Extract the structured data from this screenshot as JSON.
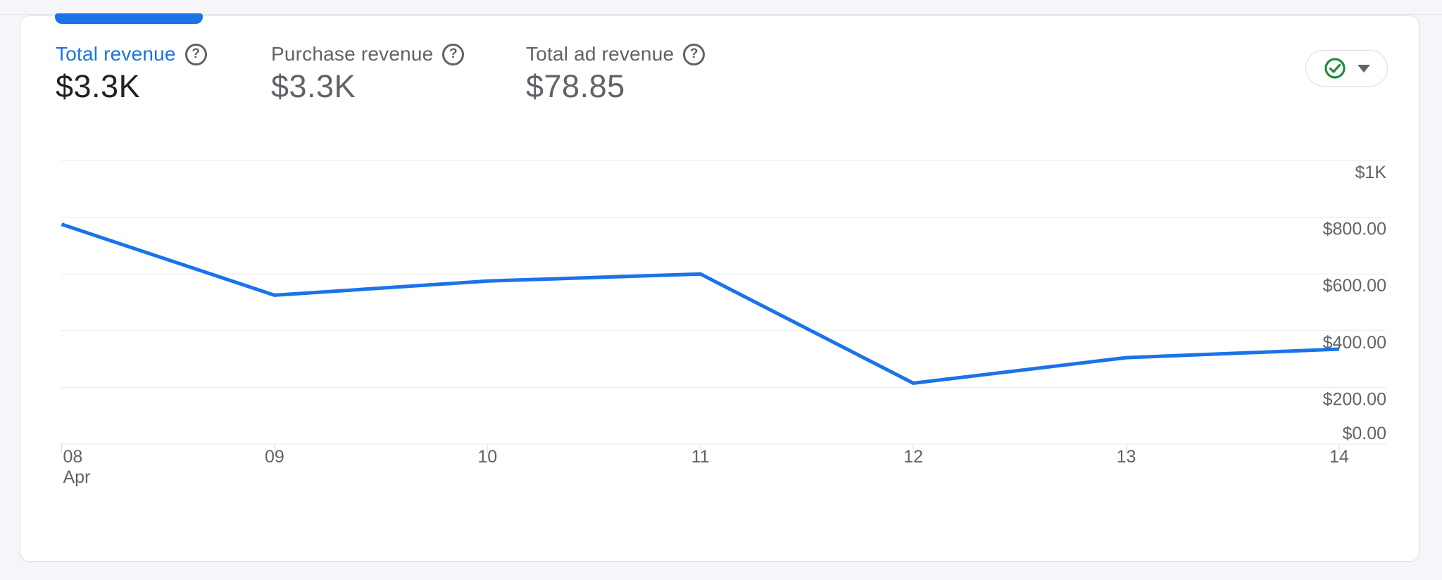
{
  "card": {
    "metrics": [
      {
        "id": "total-revenue",
        "label": "Total revenue",
        "value": "$3.3K",
        "selected": true
      },
      {
        "id": "purchase-revenue",
        "label": "Purchase revenue",
        "value": "$3.3K",
        "selected": false
      },
      {
        "id": "total-ad-revenue",
        "label": "Total ad revenue",
        "value": "$78.85",
        "selected": false
      }
    ],
    "help_icon_glyph": "?",
    "status_badge": {
      "icon": "check-circle",
      "caret_icon": "chevron-down"
    }
  },
  "colors": {
    "accent_blue": "#1a73e8",
    "line_blue": "#1a73e8",
    "ok_green": "#1e8e3e",
    "text_dark": "#202124",
    "text_gray": "#5f6368",
    "gridline": "#e8eaed",
    "tick": "#dadce0",
    "card_border": "#dfe1e5"
  },
  "chart_data": {
    "type": "line",
    "x_labels": [
      "08",
      "09",
      "10",
      "11",
      "12",
      "13",
      "14"
    ],
    "x_month_label": "Apr",
    "series": [
      {
        "name": "Total revenue",
        "values": [
          775,
          525,
          575,
          600,
          215,
          305,
          335
        ]
      }
    ],
    "y_ticks": [
      {
        "value": 1000,
        "label": "$1K"
      },
      {
        "value": 800,
        "label": "$800.00"
      },
      {
        "value": 600,
        "label": "$600.00"
      },
      {
        "value": 400,
        "label": "$400.00"
      },
      {
        "value": 200,
        "label": "$200.00"
      },
      {
        "value": 0,
        "label": "$0.00"
      }
    ],
    "ylim": [
      0,
      1000
    ],
    "grid": "horizontal",
    "legend": "none"
  }
}
